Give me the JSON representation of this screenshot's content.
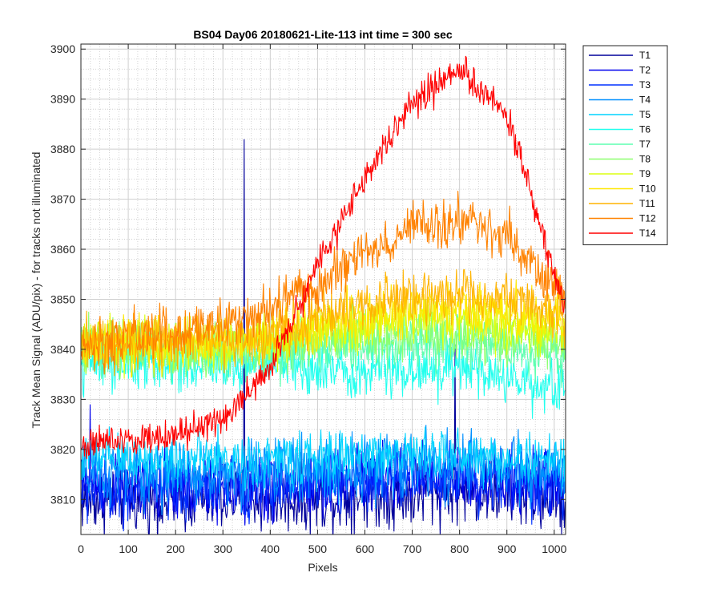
{
  "chart_data": {
    "type": "line",
    "title": "BS04 Day06 20180621-Lite-113 int time = 300 sec",
    "xlabel": "Pixels",
    "ylabel": "Track Mean Signal (ADU/pix) - for tracks not illuminated",
    "xlim": [
      0,
      1024
    ],
    "ylim": [
      3803,
      3901
    ],
    "xticks": [
      "0",
      "100",
      "200",
      "300",
      "400",
      "500",
      "600",
      "700",
      "800",
      "900",
      "1000"
    ],
    "yticks": [
      "3810",
      "3820",
      "3830",
      "3840",
      "3850",
      "3860",
      "3870",
      "3880",
      "3890",
      "3900"
    ],
    "grid": true,
    "minor_grid": true,
    "legend_position": "outside-top-right",
    "series": [
      {
        "name": "T1",
        "color": "#00009b",
        "x": [
          0,
          100,
          200,
          300,
          400,
          500,
          600,
          700,
          800,
          900,
          1024
        ],
        "y": [
          3810,
          3810,
          3810,
          3810,
          3810,
          3810,
          3811,
          3811,
          3812,
          3811,
          3810
        ],
        "noise": 5,
        "spikes": [
          {
            "x": 345,
            "y": 3882
          },
          {
            "x": 790,
            "y": 3841
          }
        ]
      },
      {
        "name": "T2",
        "color": "#0000ee",
        "x": [
          0,
          100,
          200,
          300,
          400,
          500,
          600,
          700,
          800,
          900,
          1024
        ],
        "y": [
          3813,
          3812,
          3812,
          3812,
          3812,
          3813,
          3814,
          3814,
          3814,
          3813,
          3813
        ],
        "noise": 5,
        "spikes": [
          {
            "x": 20,
            "y": 3829
          }
        ]
      },
      {
        "name": "T3",
        "color": "#0032ff",
        "x": [
          0,
          100,
          200,
          300,
          400,
          500,
          600,
          700,
          800,
          900,
          1024
        ],
        "y": [
          3812,
          3812,
          3812,
          3813,
          3813,
          3814,
          3814,
          3815,
          3815,
          3814,
          3813
        ],
        "noise": 5
      },
      {
        "name": "T4",
        "color": "#0090ff",
        "x": [
          0,
          100,
          200,
          300,
          400,
          500,
          600,
          700,
          800,
          900,
          1024
        ],
        "y": [
          3815,
          3815,
          3815,
          3815,
          3816,
          3816,
          3817,
          3817,
          3817,
          3816,
          3815
        ],
        "noise": 5
      },
      {
        "name": "T5",
        "color": "#00d4ff",
        "x": [
          0,
          100,
          200,
          300,
          400,
          500,
          600,
          700,
          800,
          900,
          1024
        ],
        "y": [
          3818,
          3818,
          3818,
          3818,
          3818,
          3818,
          3819,
          3819,
          3819,
          3818,
          3818
        ],
        "noise": 4
      },
      {
        "name": "T6",
        "color": "#22ffee",
        "x": [
          0,
          100,
          200,
          300,
          400,
          500,
          600,
          700,
          800,
          900,
          1024
        ],
        "y": [
          3837,
          3837,
          3837,
          3837,
          3837,
          3836,
          3836,
          3836,
          3836,
          3834,
          3832
        ],
        "noise": 4
      },
      {
        "name": "T7",
        "color": "#5fffb0",
        "x": [
          0,
          100,
          200,
          300,
          400,
          500,
          600,
          700,
          800,
          900,
          1024
        ],
        "y": [
          3840,
          3840,
          3839,
          3839,
          3839,
          3840,
          3841,
          3841,
          3841,
          3840,
          3839
        ],
        "noise": 4
      },
      {
        "name": "T8",
        "color": "#8cff6e",
        "x": [
          0,
          100,
          200,
          300,
          400,
          500,
          600,
          700,
          800,
          900,
          1024
        ],
        "y": [
          3841,
          3841,
          3840,
          3840,
          3841,
          3842,
          3843,
          3843,
          3843,
          3842,
          3841
        ],
        "noise": 4
      },
      {
        "name": "T9",
        "color": "#dcff10",
        "x": [
          0,
          100,
          200,
          300,
          400,
          500,
          600,
          700,
          800,
          900,
          1024
        ],
        "y": [
          3841,
          3841,
          3841,
          3841,
          3842,
          3844,
          3845,
          3846,
          3846,
          3845,
          3843
        ],
        "noise": 4
      },
      {
        "name": "T10",
        "color": "#ffe800",
        "x": [
          0,
          100,
          200,
          300,
          400,
          500,
          600,
          700,
          800,
          900,
          1024
        ],
        "y": [
          3841,
          3841,
          3841,
          3841,
          3842,
          3845,
          3847,
          3848,
          3848,
          3847,
          3845
        ],
        "noise": 4
      },
      {
        "name": "T11",
        "color": "#ffb400",
        "x": [
          0,
          100,
          200,
          300,
          400,
          500,
          600,
          700,
          800,
          900,
          1024
        ],
        "y": [
          3841,
          3841,
          3841,
          3842,
          3843,
          3846,
          3849,
          3851,
          3851,
          3850,
          3847
        ],
        "noise": 4
      },
      {
        "name": "T12",
        "color": "#ff8200",
        "x": [
          0,
          100,
          200,
          300,
          400,
          500,
          600,
          700,
          800,
          900,
          1024
        ],
        "y": [
          3840,
          3842,
          3843,
          3845,
          3848,
          3853,
          3859,
          3864,
          3866,
          3863,
          3849
        ],
        "noise": 4
      },
      {
        "name": "T14",
        "color": "#ff0000",
        "x": [
          0,
          100,
          200,
          300,
          400,
          500,
          600,
          700,
          800,
          900,
          1024
        ],
        "y": [
          3821,
          3822,
          3823,
          3826,
          3836,
          3857,
          3874,
          3889,
          3896,
          3887,
          3848
        ],
        "noise": 2.5
      }
    ]
  }
}
